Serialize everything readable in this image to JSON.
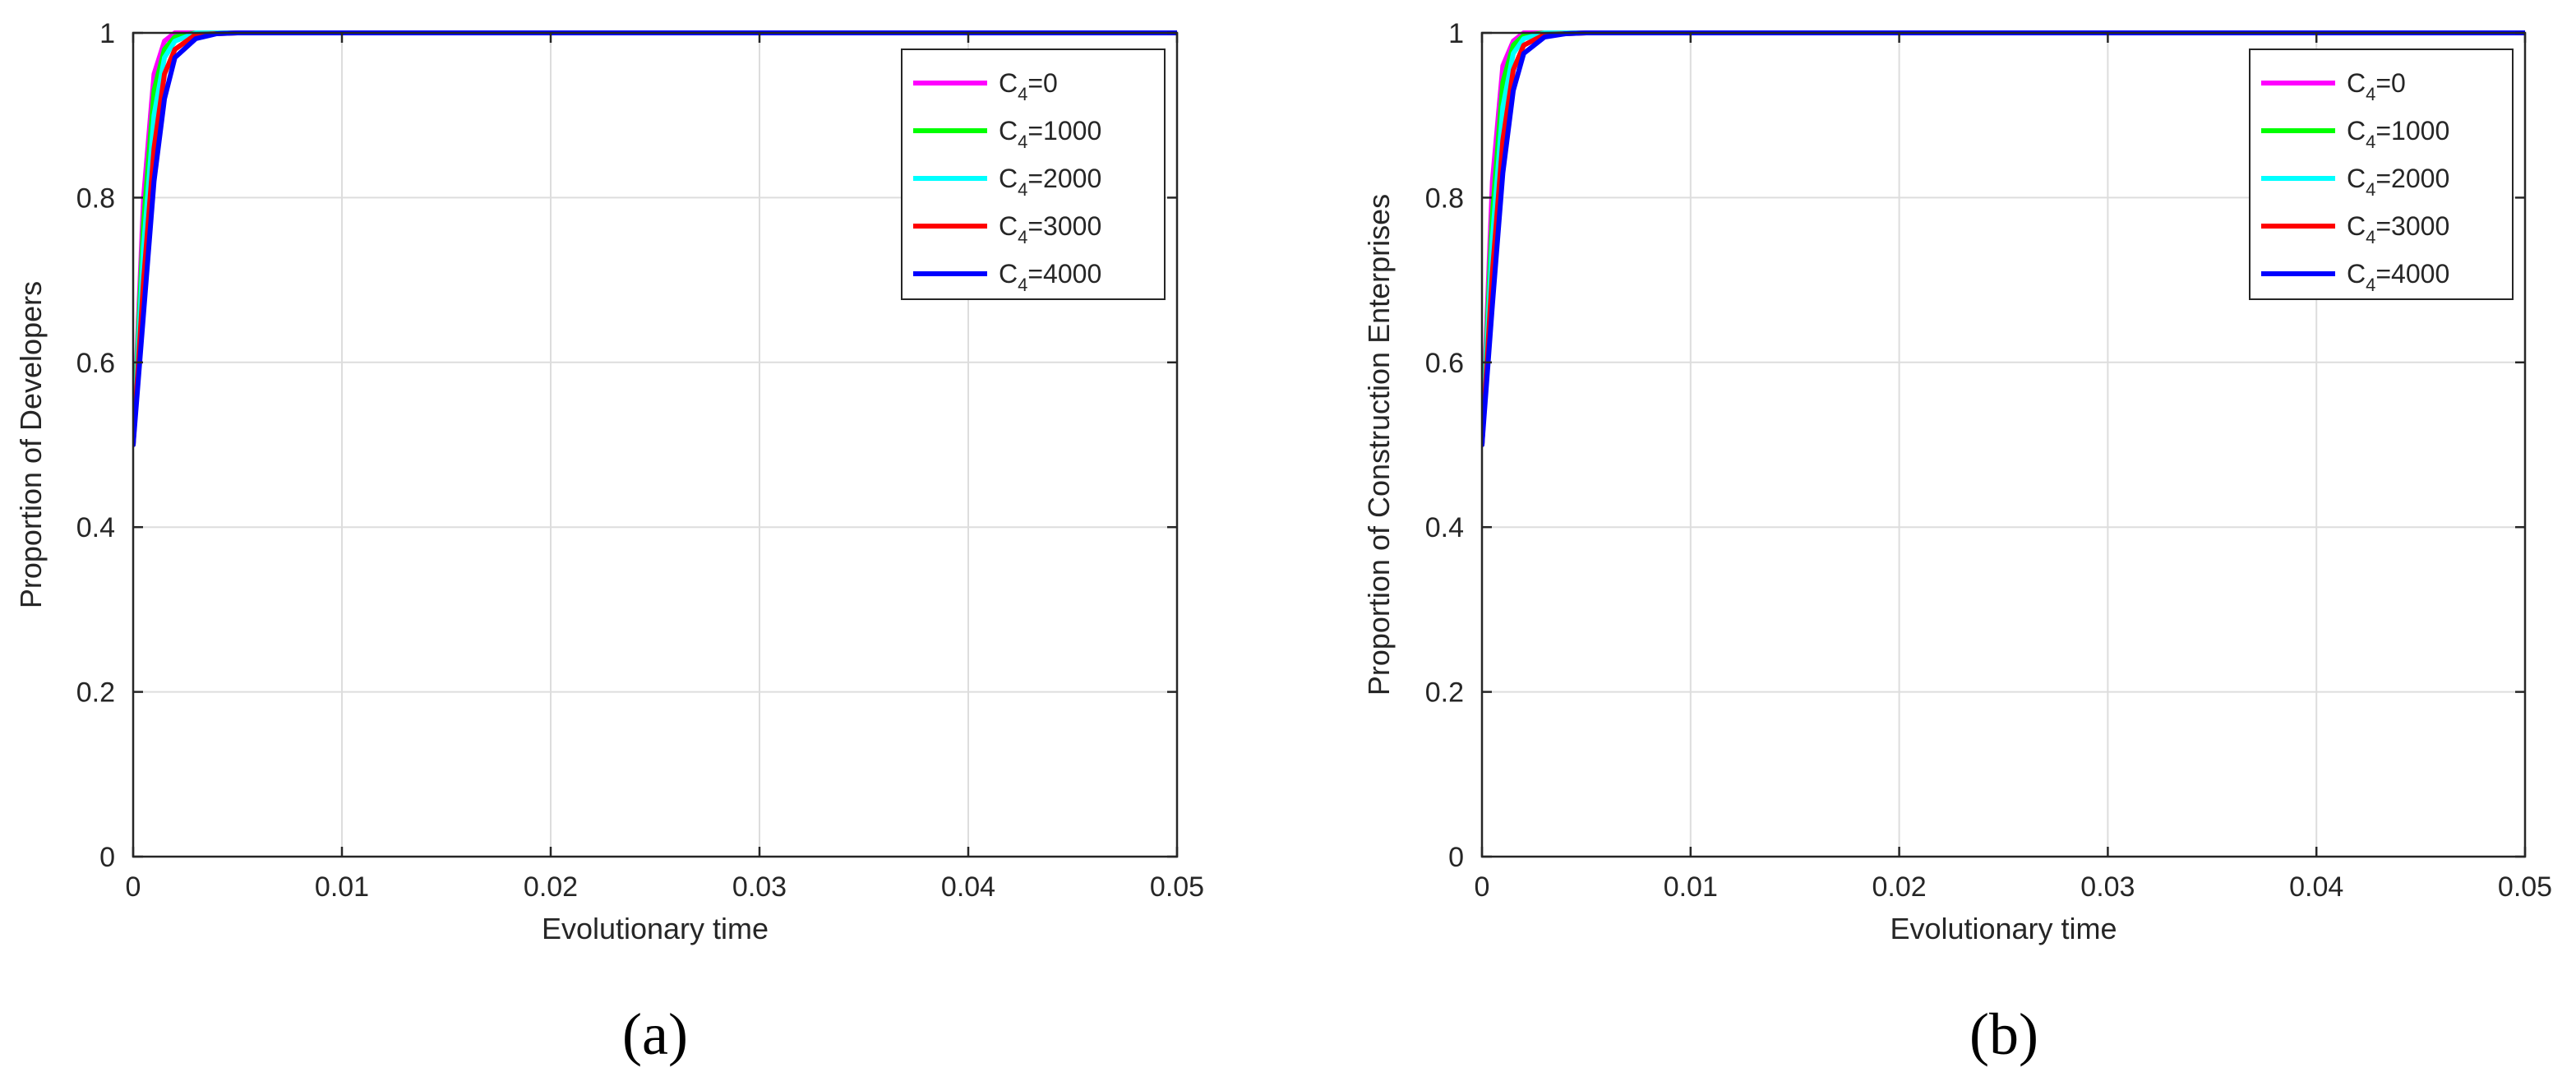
{
  "chart_data": [
    {
      "panel_label": "(a)",
      "type": "line",
      "xlabel": "Evolutionary time",
      "ylabel": "Proportion of Developers",
      "xlim": [
        0,
        0.05
      ],
      "ylim": [
        0,
        1
      ],
      "xticks": [
        0,
        0.01,
        0.02,
        0.03,
        0.04,
        0.05
      ],
      "xtick_labels": [
        "0",
        "0.01",
        "0.02",
        "0.03",
        "0.04",
        "0.05"
      ],
      "yticks": [
        0,
        0.2,
        0.4,
        0.6,
        0.8,
        1
      ],
      "ytick_labels": [
        "0",
        "0.2",
        "0.4",
        "0.6",
        "0.8",
        "1"
      ],
      "grid": true,
      "legend_position": "top-right",
      "series": [
        {
          "name": "C4=0",
          "legend_base": "C",
          "legend_sub": "4",
          "legend_rest": "=0",
          "color": "#ff00ff",
          "x": [
            0,
            0.0005,
            0.001,
            0.0015,
            0.002,
            0.003,
            0.005,
            0.05
          ],
          "y": [
            0.5,
            0.8,
            0.95,
            0.99,
            1.0,
            1.0,
            1.0,
            1.0
          ]
        },
        {
          "name": "C4=1000",
          "legend_base": "C",
          "legend_sub": "4",
          "legend_rest": "=1000",
          "color": "#00ff00",
          "x": [
            0,
            0.0005,
            0.001,
            0.0015,
            0.002,
            0.003,
            0.005,
            0.05
          ],
          "y": [
            0.5,
            0.77,
            0.93,
            0.98,
            0.995,
            1.0,
            1.0,
            1.0
          ]
        },
        {
          "name": "C4=2000",
          "legend_base": "C",
          "legend_sub": "4",
          "legend_rest": "=2000",
          "color": "#00ffff",
          "x": [
            0,
            0.0005,
            0.001,
            0.0015,
            0.002,
            0.003,
            0.005,
            0.05
          ],
          "y": [
            0.5,
            0.74,
            0.9,
            0.97,
            0.99,
            1.0,
            1.0,
            1.0
          ]
        },
        {
          "name": "C4=3000",
          "legend_base": "C",
          "legend_sub": "4",
          "legend_rest": "=3000",
          "color": "#ff0000",
          "x": [
            0,
            0.0005,
            0.001,
            0.0015,
            0.002,
            0.003,
            0.005,
            0.05
          ],
          "y": [
            0.5,
            0.7,
            0.86,
            0.95,
            0.98,
            0.998,
            1.0,
            1.0
          ]
        },
        {
          "name": "C4=4000",
          "legend_base": "C",
          "legend_sub": "4",
          "legend_rest": "=4000",
          "color": "#0000ff",
          "x": [
            0,
            0.0005,
            0.001,
            0.0015,
            0.002,
            0.003,
            0.004,
            0.005,
            0.05
          ],
          "y": [
            0.5,
            0.66,
            0.82,
            0.92,
            0.97,
            0.993,
            0.999,
            1.0,
            1.0
          ]
        }
      ]
    },
    {
      "panel_label": "(b)",
      "type": "line",
      "xlabel": "Evolutionary time",
      "ylabel": "Proportion of Construction Enterprises",
      "xlim": [
        0,
        0.05
      ],
      "ylim": [
        0,
        1
      ],
      "xticks": [
        0,
        0.01,
        0.02,
        0.03,
        0.04,
        0.05
      ],
      "xtick_labels": [
        "0",
        "0.01",
        "0.02",
        "0.03",
        "0.04",
        "0.05"
      ],
      "yticks": [
        0,
        0.2,
        0.4,
        0.6,
        0.8,
        1
      ],
      "ytick_labels": [
        "0",
        "0.2",
        "0.4",
        "0.6",
        "0.8",
        "1"
      ],
      "grid": true,
      "legend_position": "top-right",
      "series": [
        {
          "name": "C4=0",
          "legend_base": "C",
          "legend_sub": "4",
          "legend_rest": "=0",
          "color": "#ff00ff",
          "x": [
            0,
            0.0005,
            0.001,
            0.0015,
            0.002,
            0.003,
            0.005,
            0.05
          ],
          "y": [
            0.5,
            0.82,
            0.96,
            0.99,
            1.0,
            1.0,
            1.0,
            1.0
          ]
        },
        {
          "name": "C4=1000",
          "legend_base": "C",
          "legend_sub": "4",
          "legend_rest": "=1000",
          "color": "#00ff00",
          "x": [
            0,
            0.0005,
            0.001,
            0.0015,
            0.002,
            0.003,
            0.005,
            0.05
          ],
          "y": [
            0.5,
            0.78,
            0.94,
            0.985,
            0.997,
            1.0,
            1.0,
            1.0
          ]
        },
        {
          "name": "C4=2000",
          "legend_base": "C",
          "legend_sub": "4",
          "legend_rest": "=2000",
          "color": "#00ffff",
          "x": [
            0,
            0.0005,
            0.001,
            0.0015,
            0.002,
            0.003,
            0.005,
            0.05
          ],
          "y": [
            0.5,
            0.75,
            0.91,
            0.975,
            0.993,
            1.0,
            1.0,
            1.0
          ]
        },
        {
          "name": "C4=3000",
          "legend_base": "C",
          "legend_sub": "4",
          "legend_rest": "=3000",
          "color": "#ff0000",
          "x": [
            0,
            0.0005,
            0.001,
            0.0015,
            0.002,
            0.003,
            0.005,
            0.05
          ],
          "y": [
            0.5,
            0.71,
            0.87,
            0.955,
            0.985,
            0.998,
            1.0,
            1.0
          ]
        },
        {
          "name": "C4=4000",
          "legend_base": "C",
          "legend_sub": "4",
          "legend_rest": "=4000",
          "color": "#0000ff",
          "x": [
            0,
            0.0005,
            0.001,
            0.0015,
            0.002,
            0.003,
            0.004,
            0.005,
            0.05
          ],
          "y": [
            0.5,
            0.67,
            0.83,
            0.93,
            0.975,
            0.995,
            0.999,
            1.0,
            1.0
          ]
        }
      ]
    }
  ]
}
